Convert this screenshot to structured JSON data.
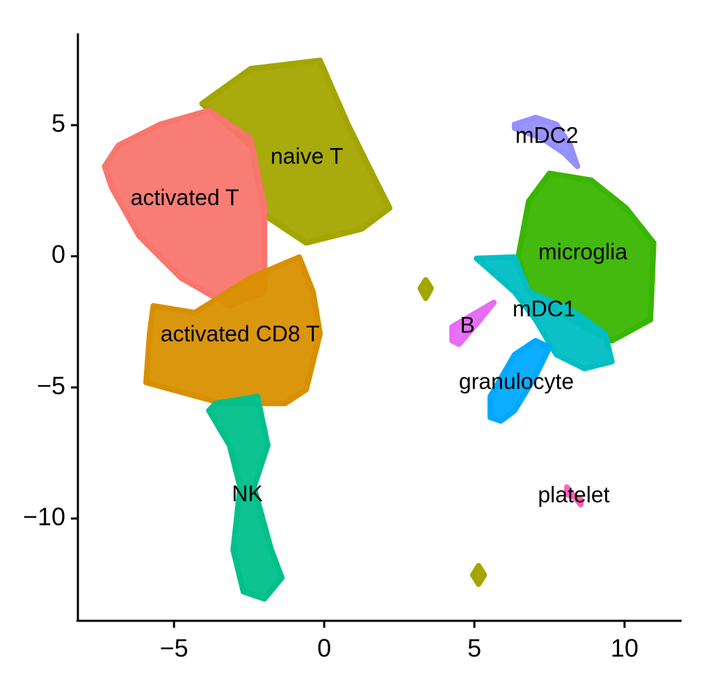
{
  "chart_data": {
    "type": "scatter",
    "xlim": [
      -8.2,
      11.9
    ],
    "ylim": [
      -13.9,
      8.5
    ],
    "xticks": [
      {
        "value": -5,
        "label": "−5"
      },
      0,
      5,
      10
    ],
    "yticks": [
      {
        "value": -10,
        "label": "−10"
      },
      {
        "value": -5,
        "label": "−5"
      },
      0,
      5
    ],
    "grid": false,
    "series": [
      {
        "name": "naive T",
        "color": "#A3A500",
        "x": [
          -4.07,
          -2.45,
          -0.14,
          0.79,
          1.71,
          2.18,
          1.25,
          -0.6,
          -1.99,
          -2.45,
          null,
          3.2,
          3.38,
          3.56,
          3.38,
          null,
          4.95,
          5.14,
          5.33,
          5.14
        ],
        "y": [
          5.82,
          7.15,
          7.47,
          5.03,
          2.9,
          1.84,
          1.04,
          0.51,
          1.57,
          4.23,
          null,
          -1.22,
          -0.9,
          -1.22,
          -1.6,
          null,
          -12.15,
          -11.8,
          -12.15,
          -12.5
        ]
      },
      {
        "name": "activated T",
        "color": "#F8766D",
        "x": [
          -7.31,
          -6.85,
          -5.46,
          -3.84,
          -2.45,
          -1.99,
          -1.99,
          -3.15,
          -4.77,
          -6.16,
          -7.08
        ],
        "y": [
          3.43,
          4.23,
          5.03,
          5.56,
          4.49,
          1.84,
          -1.36,
          -1.89,
          -0.82,
          0.77,
          2.63
        ]
      },
      {
        "name": "activated CD8 T",
        "color": "#D89000",
        "x": [
          -5.69,
          -4.31,
          -2.45,
          -0.83,
          -0.37,
          -0.14,
          -0.6,
          -1.3,
          -3.38,
          -5.93,
          -5.81
        ],
        "y": [
          -1.89,
          -2.15,
          -0.82,
          -0.03,
          -1.36,
          -2.95,
          -5.08,
          -5.61,
          -5.61,
          -4.81,
          -2.95
        ]
      },
      {
        "name": "NK",
        "color": "#00C08B",
        "x": [
          -3.61,
          -2.22,
          -1.88,
          -2.34,
          -1.76,
          -1.41,
          -1.99,
          -2.69,
          -3.03,
          -2.8,
          -3.15,
          -3.84
        ],
        "y": [
          -5.61,
          -5.35,
          -7.21,
          -8.8,
          -11.2,
          -12.26,
          -13.06,
          -12.79,
          -11.2,
          -8.8,
          -7.21,
          -5.88
        ]
      },
      {
        "name": "microglia",
        "color": "#39B600",
        "x": [
          6.81,
          7.5,
          8.89,
          10.05,
          10.97,
          10.86,
          9.58,
          8.19,
          6.81,
          6.46
        ],
        "y": [
          2.1,
          3.16,
          2.9,
          1.84,
          0.51,
          -2.42,
          -3.22,
          -2.42,
          -1.36,
          -0.03
        ]
      },
      {
        "name": "mDC1",
        "color": "#00BFC4",
        "x": [
          5.07,
          6.34,
          6.81,
          8.19,
          9.35,
          9.58,
          8.66,
          7.73,
          7.04,
          6.34,
          5.42
        ],
        "y": [
          -0.08,
          -0.03,
          -1.36,
          -2.02,
          -2.95,
          -4.02,
          -4.28,
          -3.75,
          -2.42,
          -1.36,
          -0.43
        ]
      },
      {
        "name": "granulocyte",
        "color": "#00A9FF",
        "x": [
          5.53,
          6.34,
          7.04,
          7.5,
          7.04,
          6.34,
          5.88,
          5.53
        ],
        "y": [
          -5.35,
          -3.75,
          -3.22,
          -3.48,
          -4.55,
          -5.88,
          -6.28,
          -6.14
        ]
      },
      {
        "name": "mDC2",
        "color": "#9590FF",
        "x": [
          6.34,
          7.04,
          7.73,
          8.19,
          8.43,
          7.96,
          7.27,
          6.34
        ],
        "y": [
          5.03,
          5.29,
          5.03,
          4.23,
          3.43,
          3.96,
          4.49,
          4.89
        ]
      },
      {
        "name": "B",
        "color": "#E76BF3",
        "x": [
          4.26,
          5.65,
          5.19,
          4.49,
          4.26
        ],
        "y": [
          -2.69,
          -1.76,
          -2.42,
          -3.35,
          -3.22
        ]
      },
      {
        "name": "platelet",
        "color": "#FF62BC",
        "x": [
          8.08,
          8.54,
          8.54,
          8.08
        ],
        "y": [
          -8.8,
          -9.47,
          -9.28,
          -9.07
        ]
      }
    ]
  }
}
